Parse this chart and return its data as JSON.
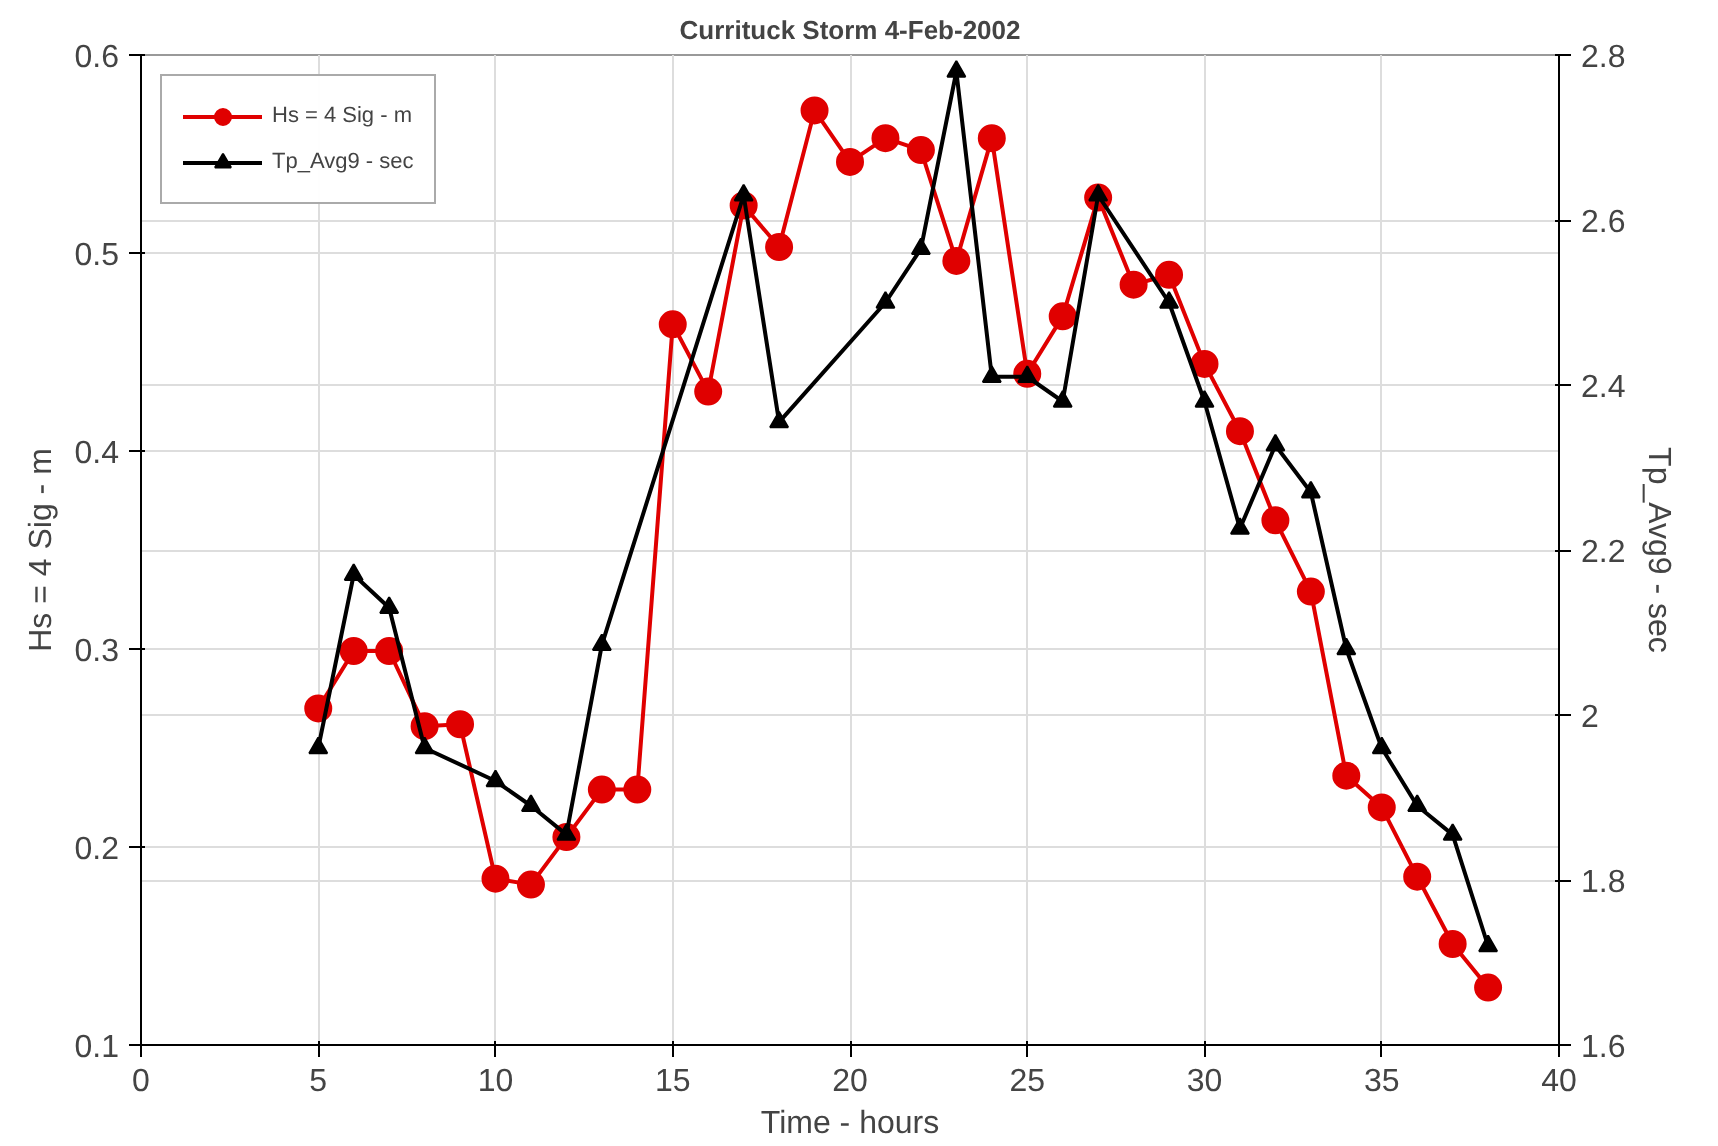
{
  "chart_data": {
    "type": "line",
    "title": "Currituck Storm 4-Feb-2002",
    "xlabel": "Time - hours",
    "ylabel": "Hs = 4 Sig - m",
    "y2label": "Tp_Avg9 - sec",
    "xlim": [
      0,
      40
    ],
    "xticks": [
      0,
      5,
      10,
      15,
      20,
      25,
      30,
      35,
      40
    ],
    "ylim": [
      0.1,
      0.6
    ],
    "yticks": [
      0.1,
      0.2,
      0.3,
      0.4,
      0.5,
      0.6
    ],
    "y2lim": [
      1.6,
      2.8
    ],
    "y2ticks": [
      1.6,
      1.8,
      2,
      2.2,
      2.4,
      2.6,
      2.8
    ],
    "grid": true,
    "legend": "top left",
    "series": [
      {
        "name": "Hs = 4 Sig - m",
        "color": "#e00000",
        "marker": "circle",
        "x": [
          5,
          6,
          7,
          8,
          9,
          10,
          11,
          12,
          13,
          14,
          15,
          16,
          17,
          18,
          19,
          20,
          21,
          22,
          23,
          24,
          25,
          26,
          27,
          28,
          29,
          30,
          31,
          32,
          33,
          34,
          35,
          36,
          37,
          38
        ],
        "values": [
          0.27,
          0.299,
          0.299,
          0.261,
          0.262,
          0.184,
          0.181,
          0.205,
          0.229,
          0.229,
          0.464,
          0.43,
          0.524,
          0.503,
          0.572,
          0.546,
          0.558,
          0.552,
          0.496,
          0.558,
          0.439,
          0.468,
          0.528,
          0.484,
          0.489,
          0.444,
          0.41,
          0.365,
          0.329,
          0.236,
          0.22,
          0.185,
          0.151,
          0.129
        ]
      },
      {
        "name": "Tp_Avg9 - sec",
        "color": "#000000",
        "marker": "triangle",
        "axis": "y2",
        "x": [
          5,
          6,
          7,
          8,
          10,
          11,
          12,
          13,
          17,
          18,
          21,
          22,
          23,
          24,
          25,
          26,
          27,
          29,
          30,
          31,
          32,
          33,
          34,
          35,
          36,
          37,
          38
        ],
        "values": [
          1.96,
          2.17,
          2.13,
          1.96,
          1.92,
          1.89,
          1.855,
          2.085,
          2.63,
          2.355,
          2.5,
          2.565,
          2.78,
          2.41,
          2.41,
          2.38,
          2.63,
          2.5,
          2.38,
          2.226,
          2.327,
          2.27,
          2.08,
          1.96,
          1.89,
          1.855,
          1.72
        ]
      }
    ]
  }
}
